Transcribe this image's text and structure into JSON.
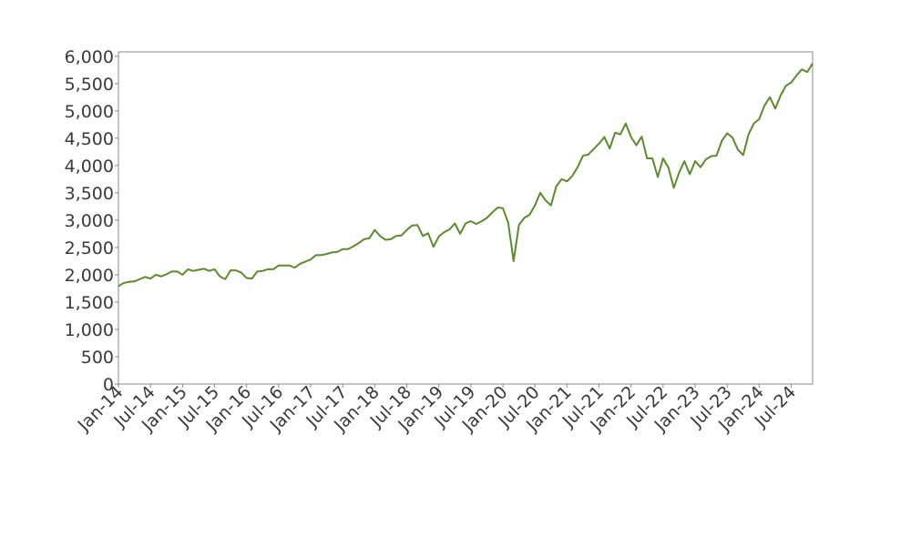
{
  "chart_data": {
    "type": "line",
    "x": [
      "2014-01",
      "2014-02",
      "2014-03",
      "2014-04",
      "2014-05",
      "2014-06",
      "2014-07",
      "2014-08",
      "2014-09",
      "2014-10",
      "2014-11",
      "2014-12",
      "2015-01",
      "2015-02",
      "2015-03",
      "2015-04",
      "2015-05",
      "2015-06",
      "2015-07",
      "2015-08",
      "2015-09",
      "2015-10",
      "2015-11",
      "2015-12",
      "2016-01",
      "2016-02",
      "2016-03",
      "2016-04",
      "2016-05",
      "2016-06",
      "2016-07",
      "2016-08",
      "2016-09",
      "2016-10",
      "2016-11",
      "2016-12",
      "2017-01",
      "2017-02",
      "2017-03",
      "2017-04",
      "2017-05",
      "2017-06",
      "2017-07",
      "2017-08",
      "2017-09",
      "2017-10",
      "2017-11",
      "2017-12",
      "2018-01",
      "2018-02",
      "2018-03",
      "2018-04",
      "2018-05",
      "2018-06",
      "2018-07",
      "2018-08",
      "2018-09",
      "2018-10",
      "2018-11",
      "2018-12",
      "2019-01",
      "2019-02",
      "2019-03",
      "2019-04",
      "2019-05",
      "2019-06",
      "2019-07",
      "2019-08",
      "2019-09",
      "2019-10",
      "2019-11",
      "2019-12",
      "2020-01",
      "2020-02",
      "2020-03",
      "2020-04",
      "2020-05",
      "2020-06",
      "2020-07",
      "2020-08",
      "2020-09",
      "2020-10",
      "2020-11",
      "2020-12",
      "2021-01",
      "2021-02",
      "2021-03",
      "2021-04",
      "2021-05",
      "2021-06",
      "2021-07",
      "2021-08",
      "2021-09",
      "2021-10",
      "2021-11",
      "2021-12",
      "2022-01",
      "2022-02",
      "2022-03",
      "2022-04",
      "2022-05",
      "2022-06",
      "2022-07",
      "2022-08",
      "2022-09",
      "2022-10",
      "2022-11",
      "2022-12",
      "2023-01",
      "2023-02",
      "2023-03",
      "2023-04",
      "2023-05",
      "2023-06",
      "2023-07",
      "2023-08",
      "2023-09",
      "2023-10",
      "2023-11",
      "2023-12",
      "2024-01",
      "2024-02",
      "2024-03",
      "2024-04",
      "2024-05",
      "2024-06",
      "2024-07",
      "2024-08",
      "2024-09",
      "2024-10",
      "2024-11"
    ],
    "series": [
      {
        "color": "#5b8c2a",
        "values": [
          1790,
          1850,
          1870,
          1880,
          1920,
          1960,
          1930,
          2000,
          1970,
          2010,
          2060,
          2060,
          2000,
          2100,
          2070,
          2090,
          2110,
          2070,
          2100,
          1970,
          1920,
          2080,
          2080,
          2040,
          1940,
          1930,
          2060,
          2070,
          2100,
          2100,
          2170,
          2170,
          2170,
          2130,
          2200,
          2240,
          2280,
          2360,
          2360,
          2380,
          2410,
          2420,
          2470,
          2470,
          2520,
          2580,
          2650,
          2670,
          2820,
          2710,
          2640,
          2650,
          2710,
          2720,
          2820,
          2900,
          2910,
          2710,
          2760,
          2510,
          2700,
          2780,
          2830,
          2940,
          2750,
          2940,
          2980,
          2930,
          2980,
          3040,
          3140,
          3230,
          3220,
          2950,
          2250,
          2910,
          3040,
          3100,
          3270,
          3500,
          3360,
          3270,
          3620,
          3750,
          3710,
          3810,
          3970,
          4180,
          4200,
          4300,
          4400,
          4520,
          4310,
          4600,
          4570,
          4770,
          4520,
          4370,
          4530,
          4130,
          4130,
          3790,
          4130,
          3960,
          3590,
          3870,
          4080,
          3840,
          4080,
          3970,
          4110,
          4170,
          4180,
          4450,
          4590,
          4510,
          4290,
          4190,
          4570,
          4770,
          4850,
          5100,
          5250,
          5040,
          5280,
          5460,
          5520,
          5650,
          5760,
          5710,
          5870
        ]
      }
    ],
    "xlim": [
      "2014-01",
      "2024-11"
    ],
    "xticks": [
      {
        "value": "2014-01",
        "label": "Jan-14"
      },
      {
        "value": "2014-07",
        "label": "Jul-14"
      },
      {
        "value": "2015-01",
        "label": "Jan-15"
      },
      {
        "value": "2015-07",
        "label": "Jul-15"
      },
      {
        "value": "2016-01",
        "label": "Jan-16"
      },
      {
        "value": "2016-07",
        "label": "Jul-16"
      },
      {
        "value": "2017-01",
        "label": "Jan-17"
      },
      {
        "value": "2017-07",
        "label": "Jul-17"
      },
      {
        "value": "2018-01",
        "label": "Jan-18"
      },
      {
        "value": "2018-07",
        "label": "Jul-18"
      },
      {
        "value": "2019-01",
        "label": "Jan-19"
      },
      {
        "value": "2019-07",
        "label": "Jul-19"
      },
      {
        "value": "2020-01",
        "label": "Jan-20"
      },
      {
        "value": "2020-07",
        "label": "Jul-20"
      },
      {
        "value": "2021-01",
        "label": "Jan-21"
      },
      {
        "value": "2021-07",
        "label": "Jul-21"
      },
      {
        "value": "2022-01",
        "label": "Jan-22"
      },
      {
        "value": "2022-07",
        "label": "Jul-22"
      },
      {
        "value": "2023-01",
        "label": "Jan-23"
      },
      {
        "value": "2023-07",
        "label": "Jul-23"
      },
      {
        "value": "2024-01",
        "label": "Jan-24"
      },
      {
        "value": "2024-07",
        "label": "Jul-24"
      }
    ],
    "ylim": [
      0,
      6080
    ],
    "yticks": [
      0,
      500,
      {
        "value": 1000,
        "label": "1,000"
      },
      {
        "value": 1500,
        "label": "1,500"
      },
      {
        "value": 2000,
        "label": "2,000"
      },
      {
        "value": 2500,
        "label": "2,500"
      },
      {
        "value": 3000,
        "label": "3,000"
      },
      {
        "value": 3500,
        "label": "3,500"
      },
      {
        "value": 4000,
        "label": "4,000"
      },
      {
        "value": 4500,
        "label": "4,500"
      },
      {
        "value": 5000,
        "label": "5,000"
      },
      {
        "value": 5500,
        "label": "5,500"
      },
      {
        "value": 6000,
        "label": "6,000"
      }
    ],
    "grid": false
  }
}
